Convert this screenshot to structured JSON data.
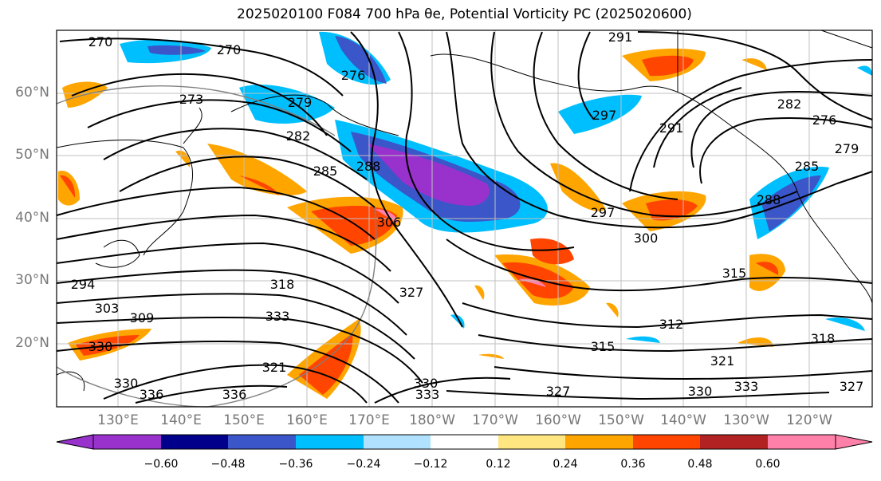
{
  "title": "2025020100 F084 700 hPa θe, Potential Vorticity PC (2025020600)",
  "lat_labels": [
    "60°N",
    "50°N",
    "40°N",
    "30°N",
    "20°N"
  ],
  "lon_labels": [
    "130°E",
    "140°E",
    "150°E",
    "160°E",
    "170°E",
    "180°W",
    "170°W",
    "160°W",
    "150°W",
    "140°W",
    "130°W",
    "120°W"
  ],
  "colorbar": {
    "ticks": [
      "−0.60",
      "−0.48",
      "−0.36",
      "−0.24",
      "−0.12",
      "0.12",
      "0.24",
      "0.36",
      "0.48",
      "0.60"
    ],
    "colors": [
      "#9932cc",
      "#00008b",
      "#3a56c8",
      "#00bfff",
      "#b0e2ff",
      "#ffffff",
      "#ffe680",
      "#ffa500",
      "#ff4500",
      "#b22222",
      "#ff80a8"
    ]
  },
  "contour_labels": [
    "270",
    "270",
    "276",
    "273",
    "279",
    "282",
    "285",
    "288",
    "291",
    "282",
    "276",
    "279",
    "291",
    "285",
    "288",
    "297",
    "297",
    "300",
    "306",
    "315",
    "318",
    "294",
    "303",
    "309",
    "327",
    "312",
    "315",
    "330",
    "333",
    "321",
    "321",
    "330",
    "336",
    "336",
    "330",
    "333",
    "327",
    "330",
    "333",
    "318",
    "327"
  ]
}
